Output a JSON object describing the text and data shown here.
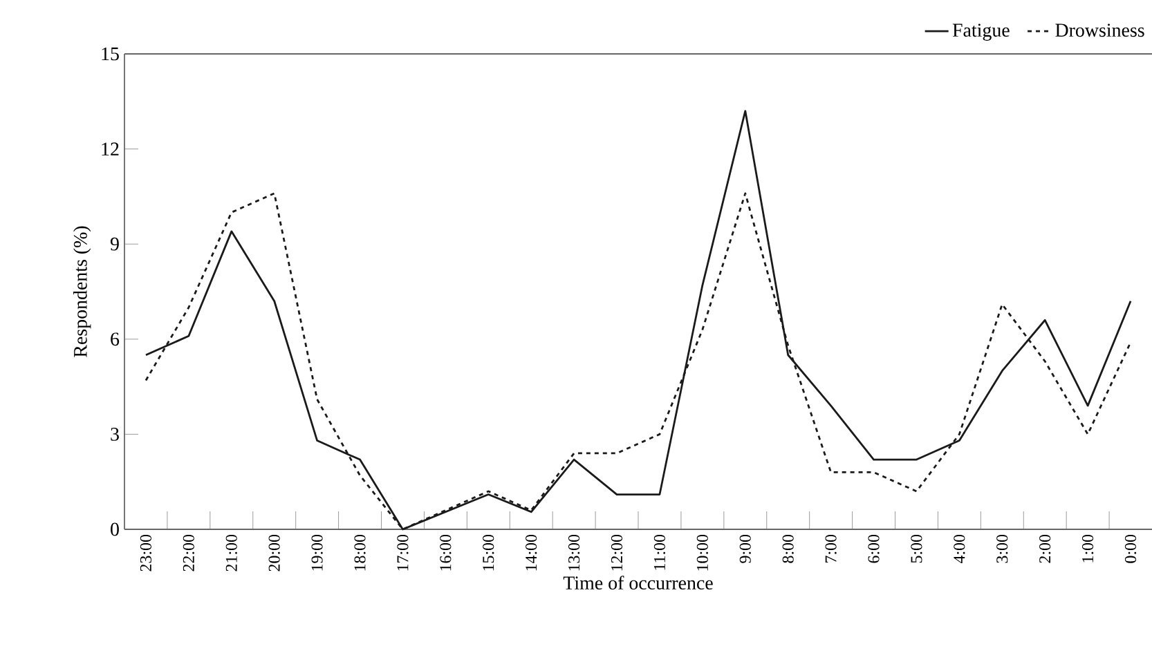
{
  "chart_data": {
    "type": "line",
    "xlabel": "Time of occurrence",
    "ylabel": "Respondents (%)",
    "categories": [
      "23:00",
      "22:00",
      "21:00",
      "20:00",
      "19:00",
      "18:00",
      "17:00",
      "16:00",
      "15:00",
      "14:00",
      "13:00",
      "12:00",
      "11:00",
      "10:00",
      "9:00",
      "8:00",
      "7:00",
      "6:00",
      "5:00",
      "4:00",
      "3:00",
      "2:00",
      "1:00",
      "0:00"
    ],
    "series": [
      {
        "name": "Fatigue",
        "color": "#1a1a1a",
        "line_style": "solid",
        "values": [
          5.5,
          6.1,
          9.4,
          7.2,
          2.8,
          2.2,
          0,
          0.55,
          1.1,
          0.55,
          2.2,
          1.1,
          1.1,
          7.7,
          13.2,
          5.5,
          3.9,
          2.2,
          2.2,
          2.8,
          5.0,
          6.6,
          3.9,
          7.2
        ]
      },
      {
        "name": "Drowsiness",
        "color": "#1a1a1a",
        "line_style": "dashed",
        "values": [
          4.7,
          7.0,
          10.0,
          10.6,
          4.1,
          1.7,
          0,
          0.6,
          1.2,
          0.6,
          2.4,
          2.4,
          3.0,
          6.3,
          10.6,
          5.8,
          1.8,
          1.8,
          1.2,
          3.0,
          7.1,
          5.3,
          3.0,
          5.9
        ]
      }
    ],
    "ylim": [
      0,
      15
    ],
    "yticks": [
      0,
      3,
      6,
      9,
      12,
      15
    ],
    "grid": false,
    "legend": "top right",
    "marker": "none"
  }
}
